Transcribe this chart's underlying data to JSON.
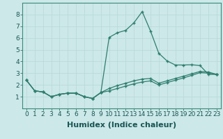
{
  "xlabel": "Humidex (Indice chaleur)",
  "bg_color": "#cce8e8",
  "line_color": "#2e7d6e",
  "xlim": [
    -0.5,
    23.5
  ],
  "ylim": [
    0,
    9
  ],
  "xticks": [
    0,
    1,
    2,
    3,
    4,
    5,
    6,
    7,
    8,
    9,
    10,
    11,
    12,
    13,
    14,
    15,
    16,
    17,
    18,
    19,
    20,
    21,
    22,
    23
  ],
  "yticks": [
    1,
    2,
    3,
    4,
    5,
    6,
    7,
    8
  ],
  "line1_x": [
    0,
    1,
    2,
    3,
    4,
    5,
    6,
    7,
    8,
    9,
    10,
    11,
    12,
    13,
    14,
    15,
    16,
    17,
    18,
    19,
    20,
    21,
    22,
    23
  ],
  "line1_y": [
    2.4,
    1.5,
    1.4,
    1.0,
    1.2,
    1.3,
    1.3,
    1.0,
    0.85,
    1.35,
    6.05,
    6.45,
    6.65,
    7.3,
    8.25,
    6.6,
    4.7,
    4.05,
    3.7,
    3.7,
    3.72,
    3.65,
    2.9,
    2.9
  ],
  "line2_x": [
    0,
    1,
    2,
    3,
    4,
    5,
    6,
    7,
    8,
    9,
    10,
    11,
    12,
    13,
    14,
    15,
    16,
    17,
    18,
    19,
    20,
    21,
    22,
    23
  ],
  "line2_y": [
    2.4,
    1.5,
    1.4,
    1.0,
    1.2,
    1.3,
    1.3,
    1.0,
    0.85,
    1.35,
    1.7,
    1.95,
    2.15,
    2.35,
    2.5,
    2.55,
    2.15,
    2.35,
    2.55,
    2.75,
    2.95,
    3.15,
    3.1,
    2.9
  ],
  "line3_x": [
    0,
    1,
    2,
    3,
    4,
    5,
    6,
    7,
    8,
    9,
    10,
    11,
    12,
    13,
    14,
    15,
    16,
    17,
    18,
    19,
    20,
    21,
    22,
    23
  ],
  "line3_y": [
    2.4,
    1.5,
    1.4,
    1.0,
    1.2,
    1.3,
    1.3,
    1.0,
    0.85,
    1.35,
    1.5,
    1.7,
    1.9,
    2.1,
    2.25,
    2.35,
    2.0,
    2.2,
    2.4,
    2.6,
    2.82,
    3.05,
    3.0,
    2.9
  ],
  "grid_color": "#b8d8d8",
  "marker": "+",
  "markersize": 3,
  "linewidth": 0.9,
  "xlabel_fontsize": 8,
  "tick_fontsize": 6.5
}
